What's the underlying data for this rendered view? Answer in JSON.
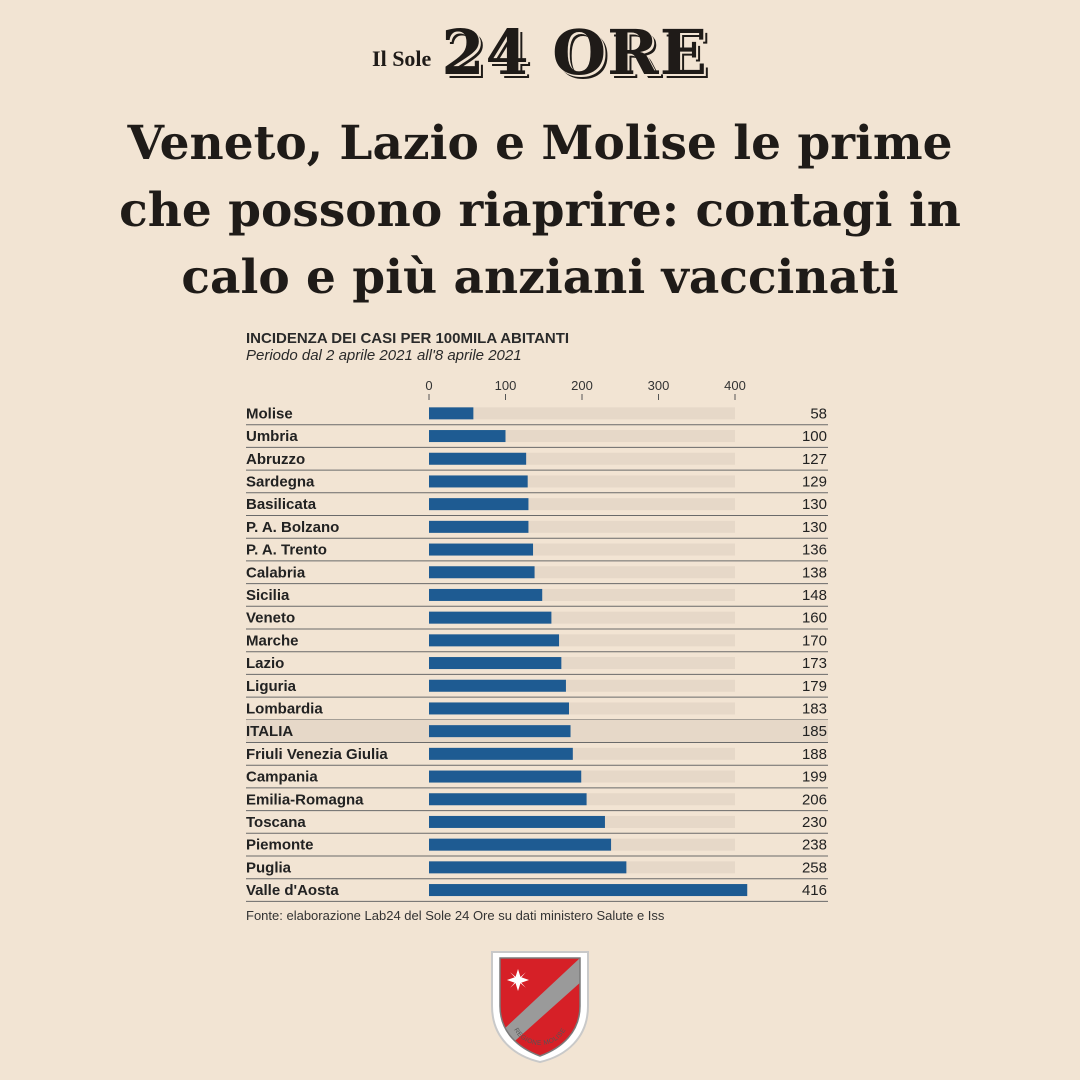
{
  "header": {
    "logo_small": "Il Sole",
    "logo_big": "24 ORE",
    "headline_lines": [
      "Veneto, Lazio e Molise le prime",
      "che possono riaprire: contagi in",
      "calo e più anziani vaccinati"
    ]
  },
  "chart_data": {
    "type": "bar",
    "orientation": "horizontal",
    "title": "INCIDENZA DEI CASI PER 100MILA ABITANTI",
    "subtitle": "Periodo dal 2 aprile 2021 all'8 aprile 2021",
    "xlim": [
      0,
      416
    ],
    "x_ticks": [
      0,
      100,
      200,
      300,
      400
    ],
    "categories": [
      "Molise",
      "Umbria",
      "Abruzzo",
      "Sardegna",
      "Basilicata",
      "P. A. Bolzano",
      "P. A. Trento",
      "Calabria",
      "Sicilia",
      "Veneto",
      "Marche",
      "Lazio",
      "Liguria",
      "Lombardia",
      "ITALIA",
      "Friuli Venezia Giulia",
      "Campania",
      "Emilia-Romagna",
      "Toscana",
      "Piemonte",
      "Puglia",
      "Valle d'Aosta"
    ],
    "values": [
      58,
      100,
      127,
      129,
      130,
      130,
      136,
      138,
      148,
      160,
      170,
      173,
      179,
      183,
      185,
      188,
      199,
      206,
      230,
      238,
      258,
      416
    ],
    "highlight_category": "ITALIA",
    "bar_color": "#1e5b92",
    "track_color": "#e6d8c8",
    "highlight_row_color": "#e6d8c8"
  },
  "footer": {
    "source": "Fonte: elaborazione Lab24 del Sole 24 Ore su dati ministero Salute e Iss",
    "emblem_text": "REGIONE MOLISE"
  }
}
